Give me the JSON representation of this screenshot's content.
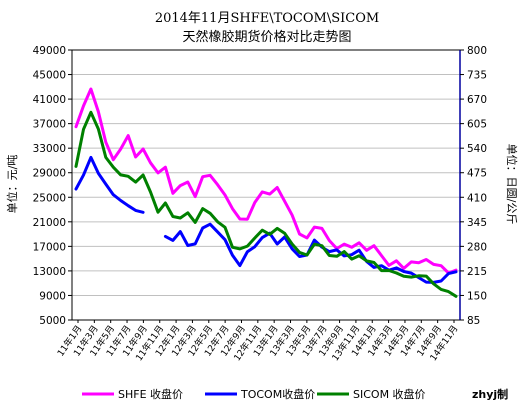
{
  "chart_data": {
    "type": "line",
    "title": "2014年11月SHFE\\TOCOM\\SICOM",
    "subtitle": "天然橡胶期货价格对比走势图",
    "ylabel_left": "单位：元/吨",
    "ylabel_right": "单位：日圆/公斤",
    "left_ticks": [
      49000,
      45000,
      41000,
      37000,
      33000,
      29000,
      25000,
      21000,
      17000,
      13000,
      9000,
      5000
    ],
    "right_ticks": [
      800,
      735,
      670,
      605,
      540,
      475,
      410,
      345,
      280,
      215,
      150,
      85
    ],
    "ylim_left": [
      5000,
      49000
    ],
    "ylim_right": [
      85,
      800
    ],
    "x_tick_labels": [
      "11年1月",
      "11年3月",
      "11年5月",
      "11年7月",
      "11年9月",
      "11年11月",
      "12年1月",
      "12年3月",
      "12年5月",
      "12年7月",
      "12年9月",
      "12年11月",
      "13年1月",
      "13年3月",
      "13年5月",
      "13年7月",
      "13年9月",
      "13年11月",
      "14年1月",
      "14年3月",
      "14年5月",
      "14年7月",
      "14年9月",
      "14年11月"
    ],
    "grid": true,
    "legend_position": "bottom",
    "series": [
      {
        "name": "SHFE 收盘价",
        "axis": "left",
        "color": "#ff00ff",
        "values": [
          36500,
          40000,
          42500,
          39000,
          34000,
          31000,
          33000,
          35000,
          31500,
          33000,
          30500,
          29000,
          30000,
          25500,
          27000,
          27500,
          25000,
          28500,
          28500,
          27000,
          25500,
          23000,
          21500,
          21500,
          24000,
          26000,
          25500,
          26500,
          24500,
          22000,
          19000,
          18500,
          20000,
          20000,
          18000,
          16500,
          17500,
          16800,
          17500,
          16500,
          17000,
          15500,
          14000,
          14500,
          13500,
          14500,
          14200,
          15000,
          14000,
          13800,
          12800,
          13000
        ]
      },
      {
        "name": "TOCOM收盘价",
        "axis": "left",
        "color": "#0000ff",
        "values": [
          26500,
          28500,
          31500,
          29000,
          27000,
          25500,
          24500,
          23500,
          23000,
          22500,
          null,
          null,
          18500,
          18000,
          19500,
          17000,
          17500,
          20000,
          20500,
          19500,
          18000,
          15500,
          14000,
          16000,
          17000,
          18500,
          19000,
          17500,
          18500,
          16500,
          15500,
          15500,
          18000,
          17000,
          16000,
          16500,
          15500,
          15500,
          16500,
          14500,
          13500,
          14000,
          13000,
          13500,
          13000,
          12500,
          12000,
          11200,
          11000,
          11500,
          12500,
          12800
        ]
      },
      {
        "name": "SICOM 收盘价",
        "axis": "left",
        "color": "#008000",
        "values": [
          30000,
          36000,
          39000,
          36000,
          31500,
          30000,
          28500,
          28500,
          27500,
          28500,
          26000,
          22500,
          24000,
          22000,
          21500,
          22500,
          21000,
          23000,
          22500,
          21000,
          20000,
          17000,
          16500,
          17000,
          18500,
          19500,
          19000,
          20000,
          19000,
          17500,
          16000,
          15500,
          17500,
          17000,
          15500,
          15500,
          16000,
          15000,
          15500,
          14500,
          14500,
          13000,
          13000,
          12800,
          12000,
          12000,
          12300,
          12000,
          11000,
          10000,
          9500,
          9000
        ]
      }
    ]
  },
  "footer": {
    "legend": [
      "SHFE 收盘价",
      "TOCOM收盘价",
      "SICOM 收盘价"
    ],
    "credit": "zhyj制"
  }
}
